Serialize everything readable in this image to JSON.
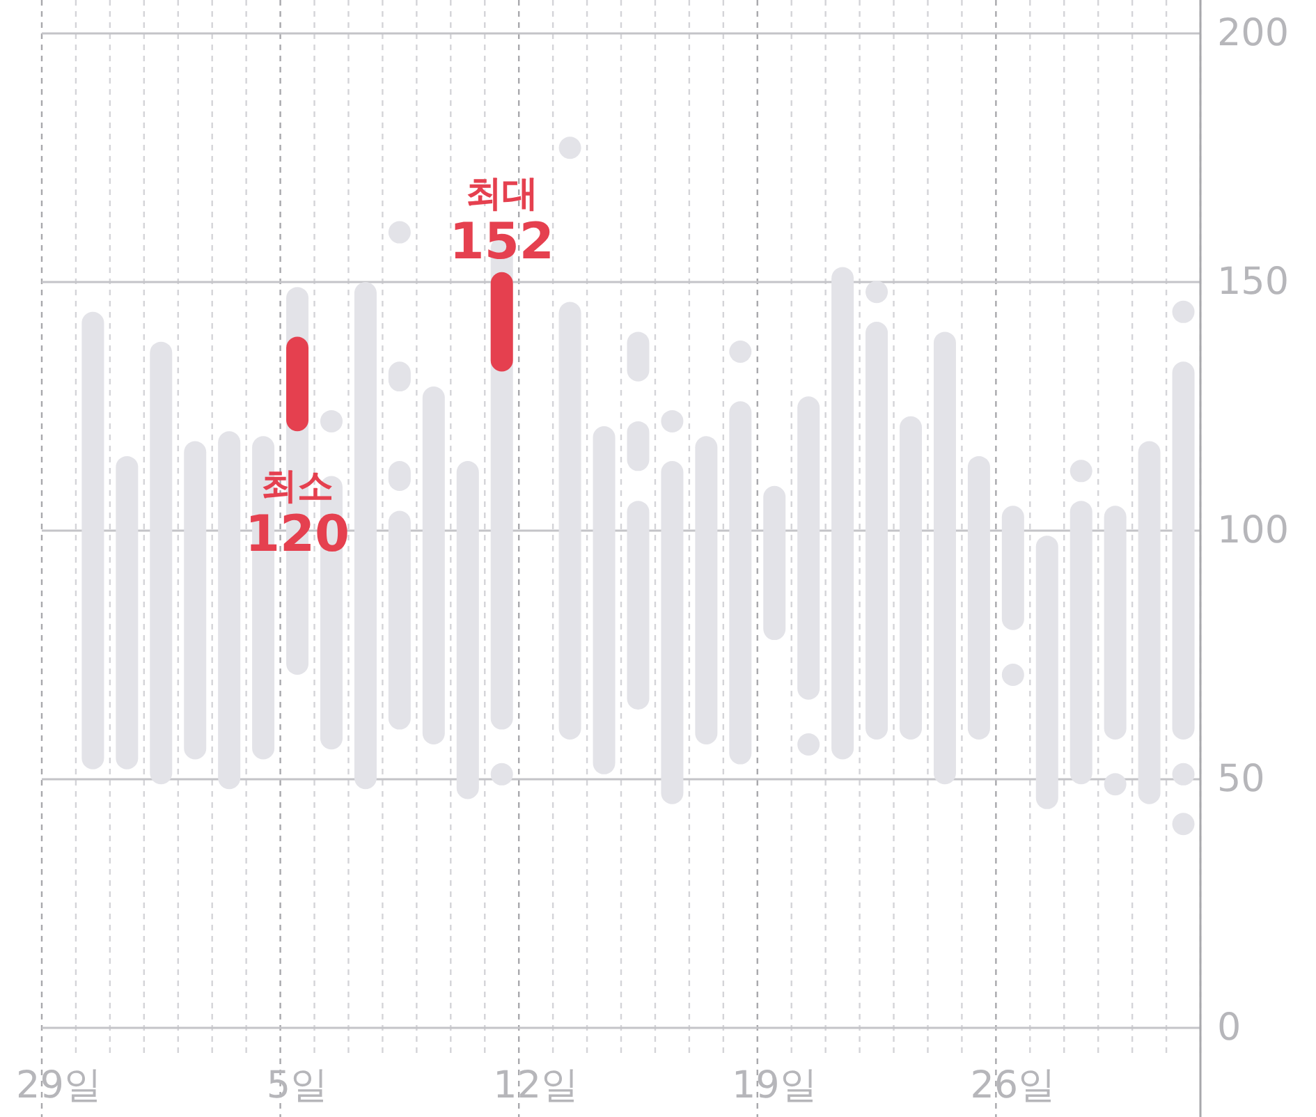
{
  "chart_data": {
    "type": "bar",
    "categories": [
      "29일",
      null,
      null,
      null,
      null,
      null,
      null,
      "5일",
      null,
      null,
      null,
      null,
      null,
      null,
      "12일",
      null,
      null,
      null,
      null,
      null,
      null,
      "19일",
      null,
      null,
      null,
      null,
      null,
      null,
      "26일",
      null,
      null,
      null,
      null,
      null
    ],
    "series": [
      {
        "color": "#e3e3e8",
        "base": [
          null,
          52,
          52,
          49,
          54,
          48,
          54,
          71,
          56,
          48,
          60,
          57,
          46,
          60,
          null,
          58,
          51,
          64,
          45,
          57,
          53,
          78,
          66,
          54,
          58,
          58,
          49,
          58,
          80,
          44,
          49,
          58,
          45,
          58
        ],
        "values": [
          null,
          92,
          63,
          89,
          64,
          72,
          65,
          78,
          55,
          102,
          44,
          72,
          68,
          99,
          null,
          88,
          70,
          42,
          69,
          62,
          73,
          31,
          61,
          99,
          84,
          65,
          91,
          57,
          25,
          55,
          57,
          47,
          73,
          76
        ]
      },
      {
        "color": "#e3e3e8",
        "base": [
          null,
          null,
          null,
          null,
          null,
          null,
          null,
          null,
          null,
          null,
          128,
          null,
          null,
          null,
          null,
          null,
          null,
          130,
          null,
          null,
          null,
          null,
          null,
          null,
          null,
          null,
          null,
          null,
          null,
          null,
          null,
          null,
          null,
          null
        ],
        "values": [
          null,
          null,
          null,
          null,
          null,
          null,
          null,
          null,
          null,
          null,
          6,
          null,
          null,
          null,
          null,
          null,
          null,
          10,
          null,
          null,
          null,
          null,
          null,
          null,
          null,
          null,
          null,
          null,
          null,
          null,
          null,
          null,
          null,
          null
        ]
      },
      {
        "color": "#e3e3e8",
        "base": [
          null,
          null,
          null,
          null,
          null,
          null,
          null,
          null,
          null,
          null,
          108,
          null,
          null,
          null,
          null,
          null,
          null,
          112,
          null,
          null,
          null,
          null,
          null,
          null,
          null,
          null,
          null,
          null,
          null,
          null,
          null,
          null,
          null,
          null
        ],
        "values": [
          null,
          null,
          null,
          null,
          null,
          null,
          null,
          null,
          null,
          null,
          6,
          null,
          null,
          null,
          null,
          null,
          null,
          10,
          null,
          null,
          null,
          null,
          null,
          null,
          null,
          null,
          null,
          null,
          null,
          null,
          null,
          null,
          null,
          null
        ]
      },
      {
        "type": "scatter",
        "color": "#e3e3e8",
        "values": [
          null,
          null,
          null,
          null,
          null,
          null,
          null,
          null,
          122,
          null,
          160,
          null,
          null,
          51,
          null,
          177,
          null,
          null,
          122,
          null,
          136,
          null,
          57,
          null,
          148,
          null,
          null,
          null,
          71,
          null,
          112,
          49,
          null,
          144
        ]
      },
      {
        "type": "scatter",
        "color": "#e3e3e8",
        "values": [
          null,
          null,
          null,
          null,
          null,
          null,
          null,
          null,
          null,
          null,
          null,
          null,
          null,
          null,
          null,
          null,
          null,
          null,
          null,
          null,
          null,
          null,
          null,
          null,
          null,
          null,
          null,
          null,
          null,
          null,
          null,
          null,
          null,
          51
        ]
      },
      {
        "type": "scatter",
        "color": "#e3e3e8",
        "values": [
          null,
          null,
          null,
          null,
          null,
          null,
          null,
          null,
          null,
          null,
          null,
          null,
          null,
          null,
          null,
          null,
          null,
          null,
          null,
          null,
          null,
          null,
          null,
          null,
          null,
          null,
          null,
          null,
          null,
          null,
          null,
          null,
          null,
          41
        ]
      },
      {
        "color": "#e5404f",
        "base": [
          null,
          null,
          null,
          null,
          null,
          null,
          null,
          120,
          null,
          null,
          null,
          null,
          null,
          132,
          null,
          null,
          null,
          null,
          null,
          null,
          null,
          null,
          null,
          null,
          null,
          null,
          null,
          null,
          null,
          null,
          null,
          null,
          null,
          null
        ],
        "values": [
          null,
          null,
          null,
          null,
          null,
          null,
          null,
          19,
          null,
          null,
          null,
          null,
          null,
          20,
          null,
          null,
          null,
          null,
          null,
          null,
          null,
          null,
          null,
          null,
          null,
          null,
          null,
          null,
          null,
          null,
          null,
          null,
          null,
          null
        ]
      }
    ],
    "annotations": [
      "최소\n120",
      "최대\n152"
    ],
    "ylim": [
      0,
      200
    ],
    "yticks": [
      0,
      50,
      100,
      150,
      200
    ],
    "grid": true
  }
}
